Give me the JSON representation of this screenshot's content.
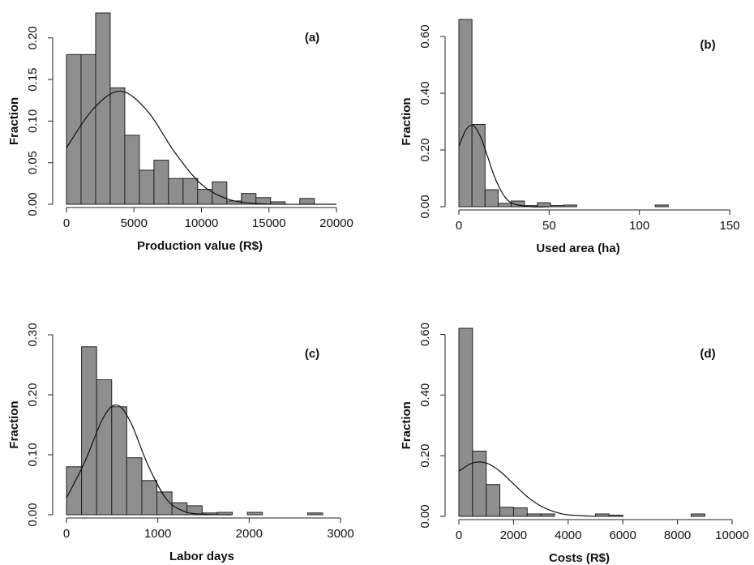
{
  "chart_data": [
    {
      "type": "histogram",
      "annotation": "(a)",
      "xlabel": "Production value (R$)",
      "ylabel": "Fraction",
      "bins": [
        0,
        1080,
        2160,
        3240,
        4320,
        5400,
        6480,
        7560,
        8640,
        9720,
        10800,
        11880,
        12960,
        14040,
        15120,
        16200,
        17280,
        18360
      ],
      "values": [
        0.18,
        0.18,
        0.23,
        0.14,
        0.083,
        0.041,
        0.053,
        0.031,
        0.031,
        0.018,
        0.027,
        0.004,
        0.013,
        0.008,
        0.003,
        0,
        0.007
      ],
      "fit": {
        "x": [
          0,
          2000,
          4000,
          6000,
          8000,
          10000,
          12000,
          14000,
          16000,
          18000,
          20000
        ],
        "values": [
          0.068,
          0.115,
          0.136,
          0.112,
          0.063,
          0.024,
          0.006,
          0.001,
          0,
          0,
          0
        ]
      },
      "color": "#8e8e8e",
      "line_color": "#111111",
      "xlim": [
        0,
        20000
      ],
      "xticks": [
        0,
        5000,
        10000,
        15000,
        20000
      ],
      "ylim": [
        0,
        0.23
      ],
      "yticks": [
        {
          "value": 0,
          "label": "0.00"
        },
        {
          "value": 0.05,
          "label": "0.05"
        },
        {
          "value": 0.1,
          "label": "0.10"
        },
        {
          "value": 0.15,
          "label": "0.15"
        },
        {
          "value": 0.2,
          "label": "0.20"
        }
      ]
    },
    {
      "type": "histogram",
      "annotation": "(b)",
      "xlabel": "Used area (ha)",
      "ylabel": "Fraction",
      "bins": [
        0,
        7.25,
        14.5,
        21.75,
        29,
        36.25,
        43.5,
        50.75,
        58,
        65.25,
        72.5,
        79.75,
        87,
        94.25,
        101.5,
        108.75,
        116
      ],
      "values": [
        0.66,
        0.29,
        0.06,
        0.012,
        0.02,
        0.004,
        0.014,
        0.004,
        0.006,
        0,
        0,
        0,
        0,
        0,
        0,
        0.006
      ],
      "fit": {
        "x": [
          0,
          4,
          8,
          12,
          16,
          20,
          25,
          30,
          40,
          50
        ],
        "values": [
          0.213,
          0.272,
          0.286,
          0.246,
          0.175,
          0.101,
          0.039,
          0.011,
          0,
          0
        ]
      },
      "color": "#8e8e8e",
      "line_color": "#111111",
      "xlim": [
        0,
        150
      ],
      "xticks": [
        0,
        50,
        100,
        150
      ],
      "ylim": [
        0,
        0.66
      ],
      "yticks": [
        {
          "value": 0,
          "label": "0.00"
        },
        {
          "value": 0.2,
          "label": "0.20"
        },
        {
          "value": 0.4,
          "label": "0.40"
        },
        {
          "value": 0.6,
          "label": "0.60"
        }
      ]
    },
    {
      "type": "histogram",
      "annotation": "(c)",
      "xlabel": "Labor days",
      "ylabel": "Fraction",
      "bins": [
        0,
        165,
        330,
        495,
        660,
        825,
        990,
        1155,
        1320,
        1485,
        1650,
        1815,
        1980,
        2145,
        2310,
        2475,
        2640,
        2805
      ],
      "values": [
        0.08,
        0.28,
        0.225,
        0.18,
        0.095,
        0.057,
        0.038,
        0.02,
        0.015,
        0.003,
        0.004,
        0,
        0.004,
        0,
        0,
        0,
        0.003
      ],
      "fit": {
        "x": [
          0,
          200,
          400,
          550,
          700,
          900,
          1100,
          1300,
          1500,
          1800
        ],
        "values": [
          0.028,
          0.088,
          0.161,
          0.183,
          0.155,
          0.08,
          0.025,
          0.005,
          0.001,
          0
        ]
      },
      "color": "#8e8e8e",
      "line_color": "#111111",
      "xlim": [
        0,
        3000
      ],
      "xticks": [
        0,
        1000,
        2000,
        3000
      ],
      "ylim": [
        0,
        0.3
      ],
      "yticks": [
        {
          "value": 0,
          "label": "0.00"
        },
        {
          "value": 0.1,
          "label": "0.10"
        },
        {
          "value": 0.2,
          "label": "0.20"
        },
        {
          "value": 0.3,
          "label": "0.30"
        }
      ]
    },
    {
      "type": "histogram",
      "annotation": "(d)",
      "xlabel": "Costs (R$)",
      "ylabel": "Fraction",
      "bins": [
        0,
        500,
        1000,
        1500,
        2000,
        2500,
        3000,
        3500,
        4000,
        4500,
        5000,
        5500,
        6000,
        6500,
        7000,
        7500,
        8000,
        8500,
        9000
      ],
      "values": [
        0.62,
        0.215,
        0.105,
        0.03,
        0.028,
        0.008,
        0.008,
        0,
        0,
        0,
        0.008,
        0.004,
        0,
        0,
        0,
        0,
        0,
        0.008
      ],
      "fit": {
        "x": [
          0,
          500,
          1000,
          1500,
          2000,
          2500,
          3000,
          3500,
          4000,
          5000
        ],
        "values": [
          0.149,
          0.176,
          0.176,
          0.149,
          0.107,
          0.065,
          0.034,
          0.015,
          0.005,
          0
        ]
      },
      "color": "#8e8e8e",
      "line_color": "#111111",
      "xlim": [
        0,
        10000
      ],
      "xticks": [
        0,
        2000,
        4000,
        6000,
        8000,
        10000
      ],
      "ylim": [
        0,
        0.62
      ],
      "yticks": [
        {
          "value": 0,
          "label": "0.00"
        },
        {
          "value": 0.2,
          "label": "0.20"
        },
        {
          "value": 0.4,
          "label": "0.40"
        },
        {
          "value": 0.6,
          "label": "0.60"
        }
      ]
    }
  ]
}
